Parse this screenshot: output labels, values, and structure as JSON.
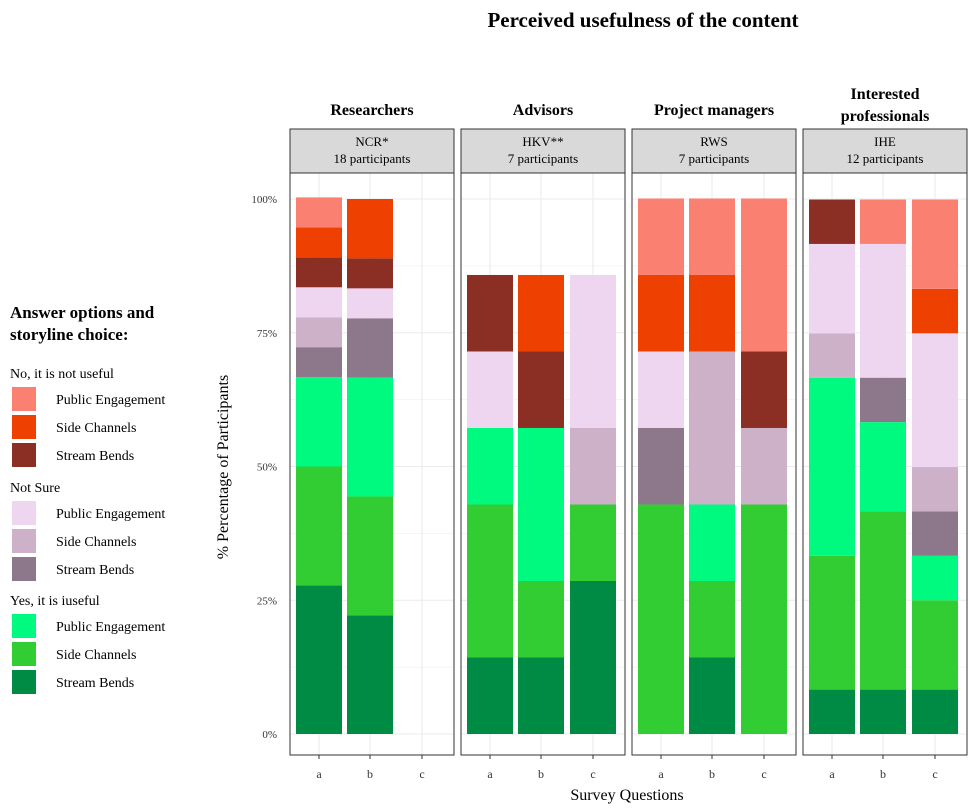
{
  "chart_data": {
    "type": "bar",
    "stacked": true,
    "title": "Perceived usefulness of the content",
    "xlabel": "Survey Questions",
    "ylabel": "% Percentage of Participants",
    "ylim": [
      0,
      1
    ],
    "y_ticks": [
      "0%",
      "25%",
      "50%",
      "75%",
      "100%"
    ],
    "grid": true,
    "legend": {
      "position": "left",
      "title": "Answer options and storyline choice:",
      "groups": [
        {
          "label": "No, it is not useful",
          "items": [
            {
              "label": "Public Engagement",
              "color": "#FA8072"
            },
            {
              "label": "Side Channels",
              "color": "#EE4000"
            },
            {
              "label": "Stream Bends",
              "color": "#8B2E24"
            }
          ]
        },
        {
          "label": "Not Sure",
          "items": [
            {
              "label": "Public Engagement",
              "color": "#EED5F0"
            },
            {
              "label": "Side Channels",
              "color": "#CDB1C9"
            },
            {
              "label": "Stream Bends",
              "color": "#8C788A"
            }
          ]
        },
        {
          "label": "Yes, it is iuseful",
          "items": [
            {
              "label": "Public Engagement",
              "color": "#00FA80"
            },
            {
              "label": "Side Channels",
              "color": "#32CD32"
            },
            {
              "label": "Stream Bends",
              "color": "#008B45"
            }
          ]
        }
      ]
    },
    "series_order": [
      "Yes - Stream Bends",
      "Yes - Side Channels",
      "Yes - Public Engagement",
      "Not Sure - Stream Bends",
      "Not Sure - Side Channels",
      "Not Sure - Public Engagement",
      "No - Stream Bends",
      "No - Side Channels",
      "No - Public Engagement"
    ],
    "series_colors": [
      "#008B45",
      "#32CD32",
      "#00FA80",
      "#8C788A",
      "#CDB1C9",
      "#EED5F0",
      "#8B2E24",
      "#EE4000",
      "#FA8072"
    ],
    "panels": [
      {
        "group": "Researchers",
        "strip_line1": "NCR*",
        "strip_line2": "18 participants",
        "categories": [
          "a",
          "b",
          "c"
        ],
        "stacks": [
          [
            0.278,
            0.222,
            0.167,
            0.056,
            0.056,
            0.056,
            0.056,
            0.056,
            0.056
          ],
          [
            0.222,
            0.222,
            0.222,
            0.111,
            0,
            0.056,
            0.056,
            0.111,
            0
          ],
          [
            0,
            0,
            0,
            0,
            0,
            0,
            0,
            0,
            0
          ]
        ]
      },
      {
        "group": "Advisors",
        "strip_line1": "HKV**",
        "strip_line2": "7 participants",
        "categories": [
          "a",
          "b",
          "c"
        ],
        "stacks": [
          [
            0.143,
            0.286,
            0.143,
            0,
            0,
            0.143,
            0.143,
            0,
            0
          ],
          [
            0.143,
            0.143,
            0.286,
            0,
            0,
            0,
            0.143,
            0.143,
            0
          ],
          [
            0.286,
            0.143,
            0,
            0,
            0.143,
            0.286,
            0,
            0,
            0
          ]
        ]
      },
      {
        "group": "Project managers",
        "strip_line1": "RWS",
        "strip_line2": "7 participants",
        "categories": [
          "a",
          "b",
          "c"
        ],
        "stacks": [
          [
            0,
            0.429,
            0,
            0.143,
            0,
            0.143,
            0,
            0.143,
            0.143
          ],
          [
            0.143,
            0.143,
            0.143,
            0,
            0.286,
            0,
            0,
            0.143,
            0.143
          ],
          [
            0,
            0.429,
            0,
            0,
            0.143,
            0,
            0.143,
            0,
            0.286
          ]
        ]
      },
      {
        "group": "Interested professionals",
        "strip_line1": "IHE",
        "strip_line2": "12 participants",
        "categories": [
          "a",
          "b",
          "c"
        ],
        "stacks": [
          [
            0.083,
            0.25,
            0.333,
            0,
            0.083,
            0.167,
            0.083,
            0,
            0
          ],
          [
            0.083,
            0.333,
            0.167,
            0.083,
            0,
            0.25,
            0,
            0,
            0.083
          ],
          [
            0.083,
            0.167,
            0.083,
            0.083,
            0.083,
            0.25,
            0,
            0.083,
            0.167
          ]
        ]
      }
    ]
  }
}
